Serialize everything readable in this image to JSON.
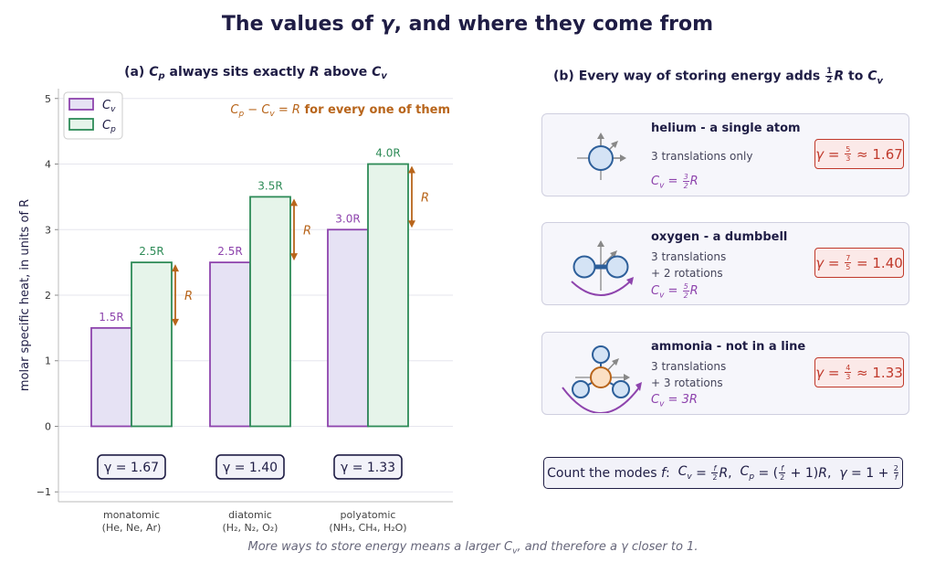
{
  "title": "The values of γ, and where they come from",
  "panel_a": {
    "title": "(a) Cp always sits exactly R above Cv",
    "annotation": "Cp − Cv = R for every one of them",
    "r_label": "R"
  },
  "panel_b": {
    "title": "(b) Every way of storing energy adds ½R to Cv",
    "cards": [
      {
        "name": "helium - a single atom",
        "modes_1": "3 translations only",
        "modes_2": "",
        "cv": "Cv = 3/2 R",
        "gamma": "γ = 5/3 ≈ 1.67"
      },
      {
        "name": "oxygen - a dumbbell",
        "modes_1": "3 translations",
        "modes_2": "+ 2 rotations",
        "cv": "Cv = 5/2 R",
        "gamma": "γ = 7/5 = 1.40"
      },
      {
        "name": "ammonia - not in a line",
        "modes_1": "3 translations",
        "modes_2": "+ 3 rotations",
        "cv": "Cv = 3R",
        "gamma": "γ = 4/3 ≈ 1.33"
      }
    ],
    "formula": "Count the modes f: Cv = f/2 R, Cp = (f/2 + 1)R, γ = 1 + 2/f"
  },
  "footer": "More ways to store energy means a larger Cv, and therefore a γ closer to 1.",
  "colors": {
    "cv": "#8e44ad",
    "cp": "#2e8b57",
    "r_arrow": "#b8651b",
    "gamma_red": "#c0392b",
    "title": "#1f1d45"
  },
  "chart_data": {
    "type": "bar",
    "categories": [
      "monatomic\n(He, Ne, Ar)",
      "diatomic\n(H₂, N₂, O₂)",
      "polyatomic\n(NH₃, CH₄, H₂O)"
    ],
    "series": [
      {
        "name": "Cv",
        "values": [
          1.5,
          2.5,
          3.0
        ],
        "labels": [
          "1.5R",
          "2.5R",
          "3.0R"
        ]
      },
      {
        "name": "Cp",
        "values": [
          2.5,
          3.5,
          4.0
        ],
        "labels": [
          "2.5R",
          "3.5R",
          "4.0R"
        ]
      }
    ],
    "gamma": [
      "γ = 1.67",
      "γ = 1.40",
      "γ = 1.33"
    ],
    "ylabel": "molar specific heat, in units of R",
    "xlabel": "",
    "ylim": [
      -1.15,
      5.15
    ],
    "yticks": [
      -1,
      0,
      1,
      2,
      3,
      4,
      5
    ],
    "grid": true,
    "legend": "top-left"
  }
}
